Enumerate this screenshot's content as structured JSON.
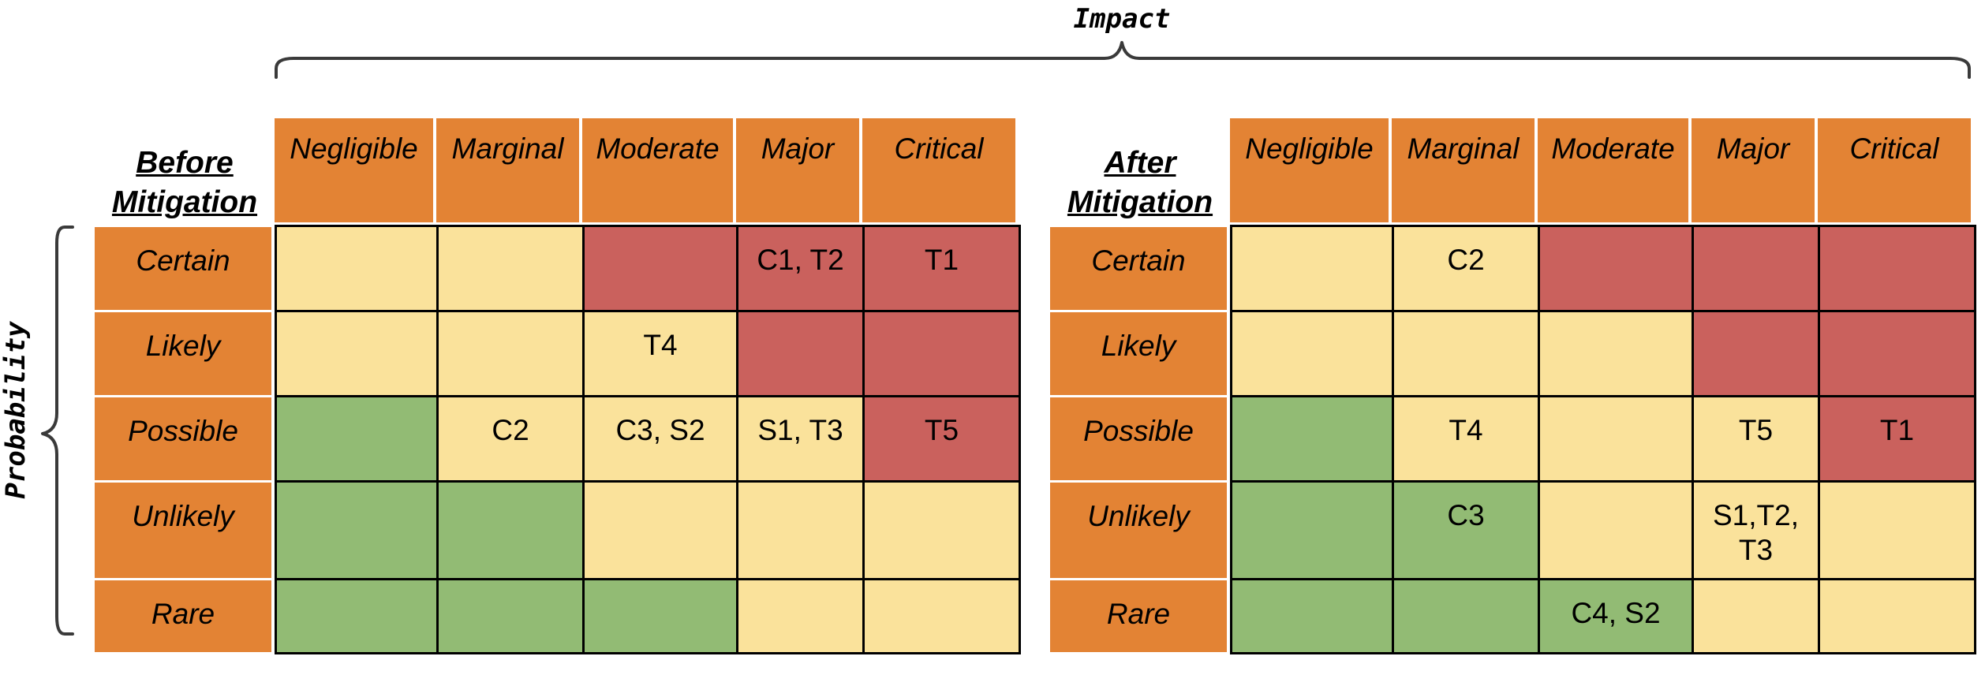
{
  "impact_label": "Impact",
  "probability_label": "Probability",
  "impact_levels": [
    "Negligible",
    "Marginal",
    "Moderate",
    "Major",
    "Critical"
  ],
  "probability_levels": [
    "Certain",
    "Likely",
    "Possible",
    "Unlikely",
    "Rare"
  ],
  "colors": {
    "header": "#e38334",
    "low": "#92bb74",
    "medium": "#fae29b",
    "high": "#ca615d"
  },
  "matrices": [
    {
      "title_line1": "Before",
      "title_line2": "Mitigation",
      "rows": [
        [
          {
            "risk": "medium",
            "label": ""
          },
          {
            "risk": "medium",
            "label": ""
          },
          {
            "risk": "high",
            "label": ""
          },
          {
            "risk": "high",
            "label": "C1, T2"
          },
          {
            "risk": "high",
            "label": "T1"
          }
        ],
        [
          {
            "risk": "medium",
            "label": ""
          },
          {
            "risk": "medium",
            "label": ""
          },
          {
            "risk": "medium",
            "label": "T4"
          },
          {
            "risk": "high",
            "label": ""
          },
          {
            "risk": "high",
            "label": ""
          }
        ],
        [
          {
            "risk": "low",
            "label": ""
          },
          {
            "risk": "medium",
            "label": "C2"
          },
          {
            "risk": "medium",
            "label": "C3, S2"
          },
          {
            "risk": "medium",
            "label": "S1, T3"
          },
          {
            "risk": "high",
            "label": "T5"
          }
        ],
        [
          {
            "risk": "low",
            "label": ""
          },
          {
            "risk": "low",
            "label": ""
          },
          {
            "risk": "medium",
            "label": ""
          },
          {
            "risk": "medium",
            "label": ""
          },
          {
            "risk": "medium",
            "label": ""
          }
        ],
        [
          {
            "risk": "low",
            "label": ""
          },
          {
            "risk": "low",
            "label": ""
          },
          {
            "risk": "low",
            "label": ""
          },
          {
            "risk": "medium",
            "label": ""
          },
          {
            "risk": "medium",
            "label": ""
          }
        ]
      ]
    },
    {
      "title_line1": "After",
      "title_line2": "Mitigation",
      "rows": [
        [
          {
            "risk": "medium",
            "label": ""
          },
          {
            "risk": "medium",
            "label": "C2"
          },
          {
            "risk": "high",
            "label": ""
          },
          {
            "risk": "high",
            "label": ""
          },
          {
            "risk": "high",
            "label": ""
          }
        ],
        [
          {
            "risk": "medium",
            "label": ""
          },
          {
            "risk": "medium",
            "label": ""
          },
          {
            "risk": "medium",
            "label": ""
          },
          {
            "risk": "high",
            "label": ""
          },
          {
            "risk": "high",
            "label": ""
          }
        ],
        [
          {
            "risk": "low",
            "label": ""
          },
          {
            "risk": "medium",
            "label": "T4"
          },
          {
            "risk": "medium",
            "label": ""
          },
          {
            "risk": "medium",
            "label": "T5"
          },
          {
            "risk": "high",
            "label": "T1"
          }
        ],
        [
          {
            "risk": "low",
            "label": ""
          },
          {
            "risk": "low",
            "label": "C3"
          },
          {
            "risk": "medium",
            "label": ""
          },
          {
            "risk": "medium",
            "label": "S1,T2,\nT3"
          },
          {
            "risk": "medium",
            "label": ""
          }
        ],
        [
          {
            "risk": "low",
            "label": ""
          },
          {
            "risk": "low",
            "label": ""
          },
          {
            "risk": "low",
            "label": "C4, S2"
          },
          {
            "risk": "medium",
            "label": ""
          },
          {
            "risk": "medium",
            "label": ""
          }
        ]
      ]
    }
  ]
}
